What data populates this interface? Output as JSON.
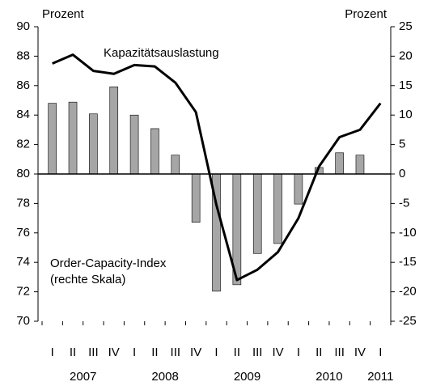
{
  "chart_data": {
    "type": "bar-line",
    "categories": [
      "I",
      "II",
      "III",
      "IV",
      "I",
      "II",
      "III",
      "IV",
      "I",
      "II",
      "III",
      "IV",
      "I",
      "II",
      "III",
      "IV",
      "I"
    ],
    "x_groups": [
      "2007",
      "2008",
      "2009",
      "2010",
      "2011"
    ],
    "y_label": "Prozent",
    "y2_label": "Prozent",
    "ylim": [
      70,
      90
    ],
    "yticks": [
      70,
      72,
      74,
      76,
      78,
      80,
      82,
      84,
      86,
      88,
      90
    ],
    "y2lim": [
      -25,
      25
    ],
    "y2ticks": [
      -25,
      -20,
      -15,
      -10,
      -5,
      0,
      5,
      10,
      15,
      20,
      25
    ],
    "series": [
      {
        "name": "Kapazitätsauslastung",
        "type": "line",
        "color": "#000000",
        "values": [
          87.5,
          88.1,
          87.0,
          86.8,
          87.4,
          87.3,
          86.2,
          84.2,
          77.9,
          72.8,
          73.5,
          74.7,
          77.0,
          80.5,
          82.5,
          83.0,
          84.8
        ]
      },
      {
        "name": "Order-Capacity-Index",
        "note": "(rechte Skala)",
        "type": "bar",
        "axis": "y2",
        "color": "#a6a6a6",
        "values": [
          12.0,
          12.2,
          10.2,
          14.8,
          10.0,
          7.7,
          3.2,
          -8.2,
          -19.9,
          -18.8,
          -13.5,
          -11.8,
          -5.1,
          1.1,
          3.6,
          3.2,
          null
        ]
      }
    ]
  }
}
